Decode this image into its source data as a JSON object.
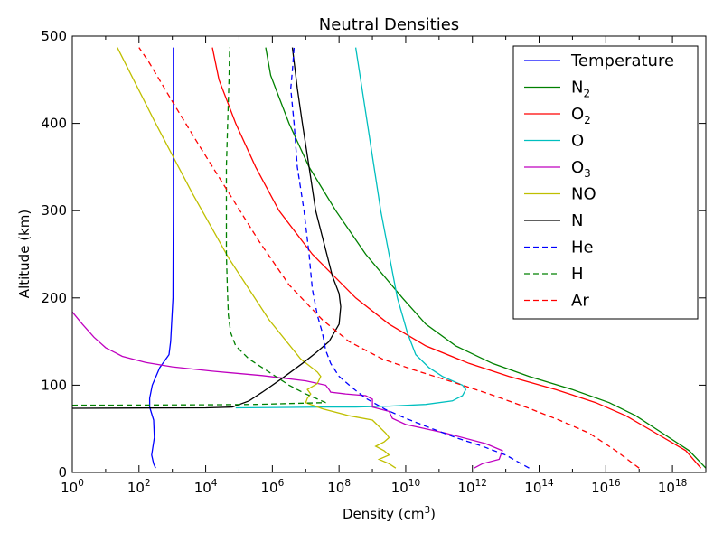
{
  "chart_data": {
    "type": "line",
    "title": "Neutral Densities",
    "xlabel": "Density (cm",
    "xlabel_sup": "3",
    "xlabel_suffix": ")",
    "ylabel": "Altitude (km)",
    "xscale": "log",
    "xlim": [
      1,
      1e+19
    ],
    "ylim": [
      0,
      500
    ],
    "x_ticks": [
      {
        "base": "10",
        "exp": "0",
        "value": 1
      },
      {
        "base": "10",
        "exp": "2",
        "value": 100
      },
      {
        "base": "10",
        "exp": "4",
        "value": 10000
      },
      {
        "base": "10",
        "exp": "6",
        "value": 1000000
      },
      {
        "base": "10",
        "exp": "8",
        "value": 100000000
      },
      {
        "base": "10",
        "exp": "10",
        "value": 10000000000
      },
      {
        "base": "10",
        "exp": "12",
        "value": 1000000000000
      },
      {
        "base": "10",
        "exp": "14",
        "value": 100000000000000
      },
      {
        "base": "10",
        "exp": "16",
        "value": 10000000000000000
      },
      {
        "base": "10",
        "exp": "18",
        "value": 1000000000000000000
      }
    ],
    "y_ticks": [
      0,
      100,
      200,
      300,
      400,
      500
    ],
    "grid": false,
    "legend_position": "top-right",
    "series": [
      {
        "name": "Temperature",
        "sub": "",
        "color": "#0000ff",
        "dash": "solid",
        "points": [
          [
            2.5,
            5
          ],
          [
            2.44,
            10
          ],
          [
            2.38,
            20
          ],
          [
            2.46,
            40
          ],
          [
            2.44,
            60
          ],
          [
            2.32,
            75
          ],
          [
            2.32,
            85
          ],
          [
            2.4,
            100
          ],
          [
            2.62,
            120
          ],
          [
            2.9,
            135
          ],
          [
            2.95,
            150
          ],
          [
            3.02,
            200
          ],
          [
            3.03,
            300
          ],
          [
            3.03,
            400
          ],
          [
            3.03,
            487
          ]
        ]
      },
      {
        "name": "N",
        "sub": "2",
        "color": "#008000",
        "dash": "solid",
        "points": [
          [
            19.0,
            5
          ],
          [
            18.5,
            25
          ],
          [
            17.7,
            45
          ],
          [
            16.9,
            65
          ],
          [
            16.1,
            80
          ],
          [
            15.0,
            95
          ],
          [
            13.7,
            110
          ],
          [
            12.6,
            125
          ],
          [
            11.5,
            145
          ],
          [
            10.6,
            170
          ],
          [
            9.9,
            200
          ],
          [
            8.8,
            250
          ],
          [
            7.9,
            300
          ],
          [
            7.1,
            350
          ],
          [
            6.5,
            400
          ],
          [
            6.2,
            430
          ],
          [
            5.95,
            455
          ],
          [
            5.8,
            487
          ]
        ]
      },
      {
        "name": "O",
        "sub": "2",
        "color": "#ff0000",
        "dash": "solid",
        "points": [
          [
            18.85,
            5
          ],
          [
            18.4,
            25
          ],
          [
            17.5,
            45
          ],
          [
            16.6,
            65
          ],
          [
            15.7,
            80
          ],
          [
            14.5,
            95
          ],
          [
            13.1,
            110
          ],
          [
            11.9,
            125
          ],
          [
            10.6,
            145
          ],
          [
            9.5,
            170
          ],
          [
            8.5,
            200
          ],
          [
            7.2,
            250
          ],
          [
            6.2,
            300
          ],
          [
            5.5,
            350
          ],
          [
            4.9,
            400
          ],
          [
            4.4,
            450
          ],
          [
            4.2,
            487
          ]
        ]
      },
      {
        "name": "O",
        "sub": "",
        "color": "#00bfbf",
        "dash": "solid",
        "points": [
          [
            4.9,
            74
          ],
          [
            6.5,
            74.5
          ],
          [
            7.5,
            75
          ],
          [
            8.5,
            75
          ],
          [
            9.5,
            76
          ],
          [
            10.6,
            78
          ],
          [
            11.4,
            82
          ],
          [
            11.7,
            88
          ],
          [
            11.8,
            95
          ],
          [
            11.7,
            100
          ],
          [
            11.4,
            105
          ],
          [
            11.1,
            110
          ],
          [
            10.7,
            120
          ],
          [
            10.3,
            135
          ],
          [
            10.05,
            160
          ],
          [
            9.9,
            180
          ],
          [
            9.75,
            200
          ],
          [
            9.5,
            250
          ],
          [
            9.25,
            300
          ],
          [
            9.05,
            350
          ],
          [
            8.85,
            400
          ],
          [
            8.65,
            450
          ],
          [
            8.5,
            487
          ]
        ]
      },
      {
        "name": "O",
        "sub": "3",
        "color": "#bf00bf",
        "dash": "solid",
        "points": [
          [
            0,
            184
          ],
          [
            0.3,
            170
          ],
          [
            0.65,
            155
          ],
          [
            1.0,
            143
          ],
          [
            1.5,
            133
          ],
          [
            2.2,
            126
          ],
          [
            3.0,
            121
          ],
          [
            4.2,
            116
          ],
          [
            5.7,
            111
          ],
          [
            7.0,
            105
          ],
          [
            7.6,
            100
          ],
          [
            7.7,
            95
          ],
          [
            7.75,
            92
          ],
          [
            8.2,
            90
          ],
          [
            8.8,
            88
          ],
          [
            9.0,
            84
          ],
          [
            9.0,
            75
          ],
          [
            9.5,
            70
          ],
          [
            9.6,
            62
          ],
          [
            10.0,
            55
          ],
          [
            11.2,
            45
          ],
          [
            12.4,
            33
          ],
          [
            12.9,
            25
          ],
          [
            12.8,
            15
          ],
          [
            12.3,
            10
          ],
          [
            12.05,
            5
          ]
        ]
      },
      {
        "name": "NO",
        "sub": "",
        "color": "#bfbf00",
        "dash": "solid",
        "points": [
          [
            1.35,
            487
          ],
          [
            2.5,
            400
          ],
          [
            3.6,
            320
          ],
          [
            4.7,
            245
          ],
          [
            5.9,
            175
          ],
          [
            6.85,
            130
          ],
          [
            7.35,
            115
          ],
          [
            7.45,
            110
          ],
          [
            7.35,
            102
          ],
          [
            7.05,
            95
          ],
          [
            7.15,
            90
          ],
          [
            7.05,
            85
          ],
          [
            7.0,
            80
          ],
          [
            7.5,
            73
          ],
          [
            8.3,
            65
          ],
          [
            9.0,
            60
          ],
          [
            9.4,
            45
          ],
          [
            9.5,
            40
          ],
          [
            9.35,
            35
          ],
          [
            9.1,
            30
          ],
          [
            9.35,
            25
          ],
          [
            9.5,
            20
          ],
          [
            9.2,
            15
          ],
          [
            9.5,
            10
          ],
          [
            9.7,
            5
          ]
        ]
      },
      {
        "name": "N",
        "sub": "",
        "color": "#000000",
        "dash": "solid",
        "points": [
          [
            0,
            73.5
          ],
          [
            2.0,
            73.8
          ],
          [
            4.0,
            74
          ],
          [
            4.8,
            75
          ],
          [
            5.3,
            82
          ],
          [
            5.7,
            92
          ],
          [
            6.3,
            108
          ],
          [
            6.9,
            125
          ],
          [
            7.3,
            137
          ],
          [
            7.7,
            150
          ],
          [
            8.0,
            170
          ],
          [
            8.05,
            190
          ],
          [
            8.0,
            205
          ],
          [
            7.8,
            225
          ],
          [
            7.6,
            255
          ],
          [
            7.3,
            300
          ],
          [
            7.1,
            350
          ],
          [
            6.9,
            400
          ],
          [
            6.75,
            440
          ],
          [
            6.6,
            487
          ]
        ]
      },
      {
        "name": "He",
        "sub": "",
        "color": "#0000ff",
        "dash": "dashed",
        "points": [
          [
            13.7,
            5
          ],
          [
            13.0,
            20
          ],
          [
            12.3,
            30
          ],
          [
            11.5,
            40
          ],
          [
            10.8,
            50
          ],
          [
            10.0,
            62
          ],
          [
            9.4,
            72
          ],
          [
            8.8,
            85
          ],
          [
            8.4,
            97
          ],
          [
            8.0,
            110
          ],
          [
            7.75,
            125
          ],
          [
            7.6,
            140
          ],
          [
            7.5,
            160
          ],
          [
            7.35,
            180
          ],
          [
            7.2,
            210
          ],
          [
            7.1,
            250
          ],
          [
            6.95,
            300
          ],
          [
            6.75,
            350
          ],
          [
            6.65,
            400
          ],
          [
            6.55,
            440
          ],
          [
            6.6,
            460
          ],
          [
            6.65,
            487
          ]
        ]
      },
      {
        "name": "H",
        "sub": "",
        "color": "#008000",
        "dash": "dashed",
        "points": [
          [
            0,
            77
          ],
          [
            2.0,
            77.2
          ],
          [
            4.0,
            77.5
          ],
          [
            5.5,
            78
          ],
          [
            6.5,
            79
          ],
          [
            7.6,
            80
          ],
          [
            7.0,
            90
          ],
          [
            6.5,
            100
          ],
          [
            5.9,
            115
          ],
          [
            5.3,
            130
          ],
          [
            4.9,
            145
          ],
          [
            4.75,
            160
          ],
          [
            4.68,
            180
          ],
          [
            4.65,
            210
          ],
          [
            4.62,
            250
          ],
          [
            4.62,
            300
          ],
          [
            4.62,
            350
          ],
          [
            4.66,
            400
          ],
          [
            4.7,
            450
          ],
          [
            4.72,
            487
          ]
        ]
      },
      {
        "name": "Ar",
        "sub": "",
        "color": "#ff0000",
        "dash": "dashed",
        "points": [
          [
            17.0,
            5
          ],
          [
            16.3,
            25
          ],
          [
            15.5,
            45
          ],
          [
            14.6,
            60
          ],
          [
            13.6,
            75
          ],
          [
            12.5,
            90
          ],
          [
            11.3,
            105
          ],
          [
            10.2,
            118
          ],
          [
            9.3,
            130
          ],
          [
            8.3,
            150
          ],
          [
            7.5,
            175
          ],
          [
            6.5,
            215
          ],
          [
            5.6,
            265
          ],
          [
            4.7,
            320
          ],
          [
            3.8,
            375
          ],
          [
            3.0,
            425
          ],
          [
            2.3,
            470
          ],
          [
            2.0,
            487
          ]
        ]
      }
    ]
  }
}
